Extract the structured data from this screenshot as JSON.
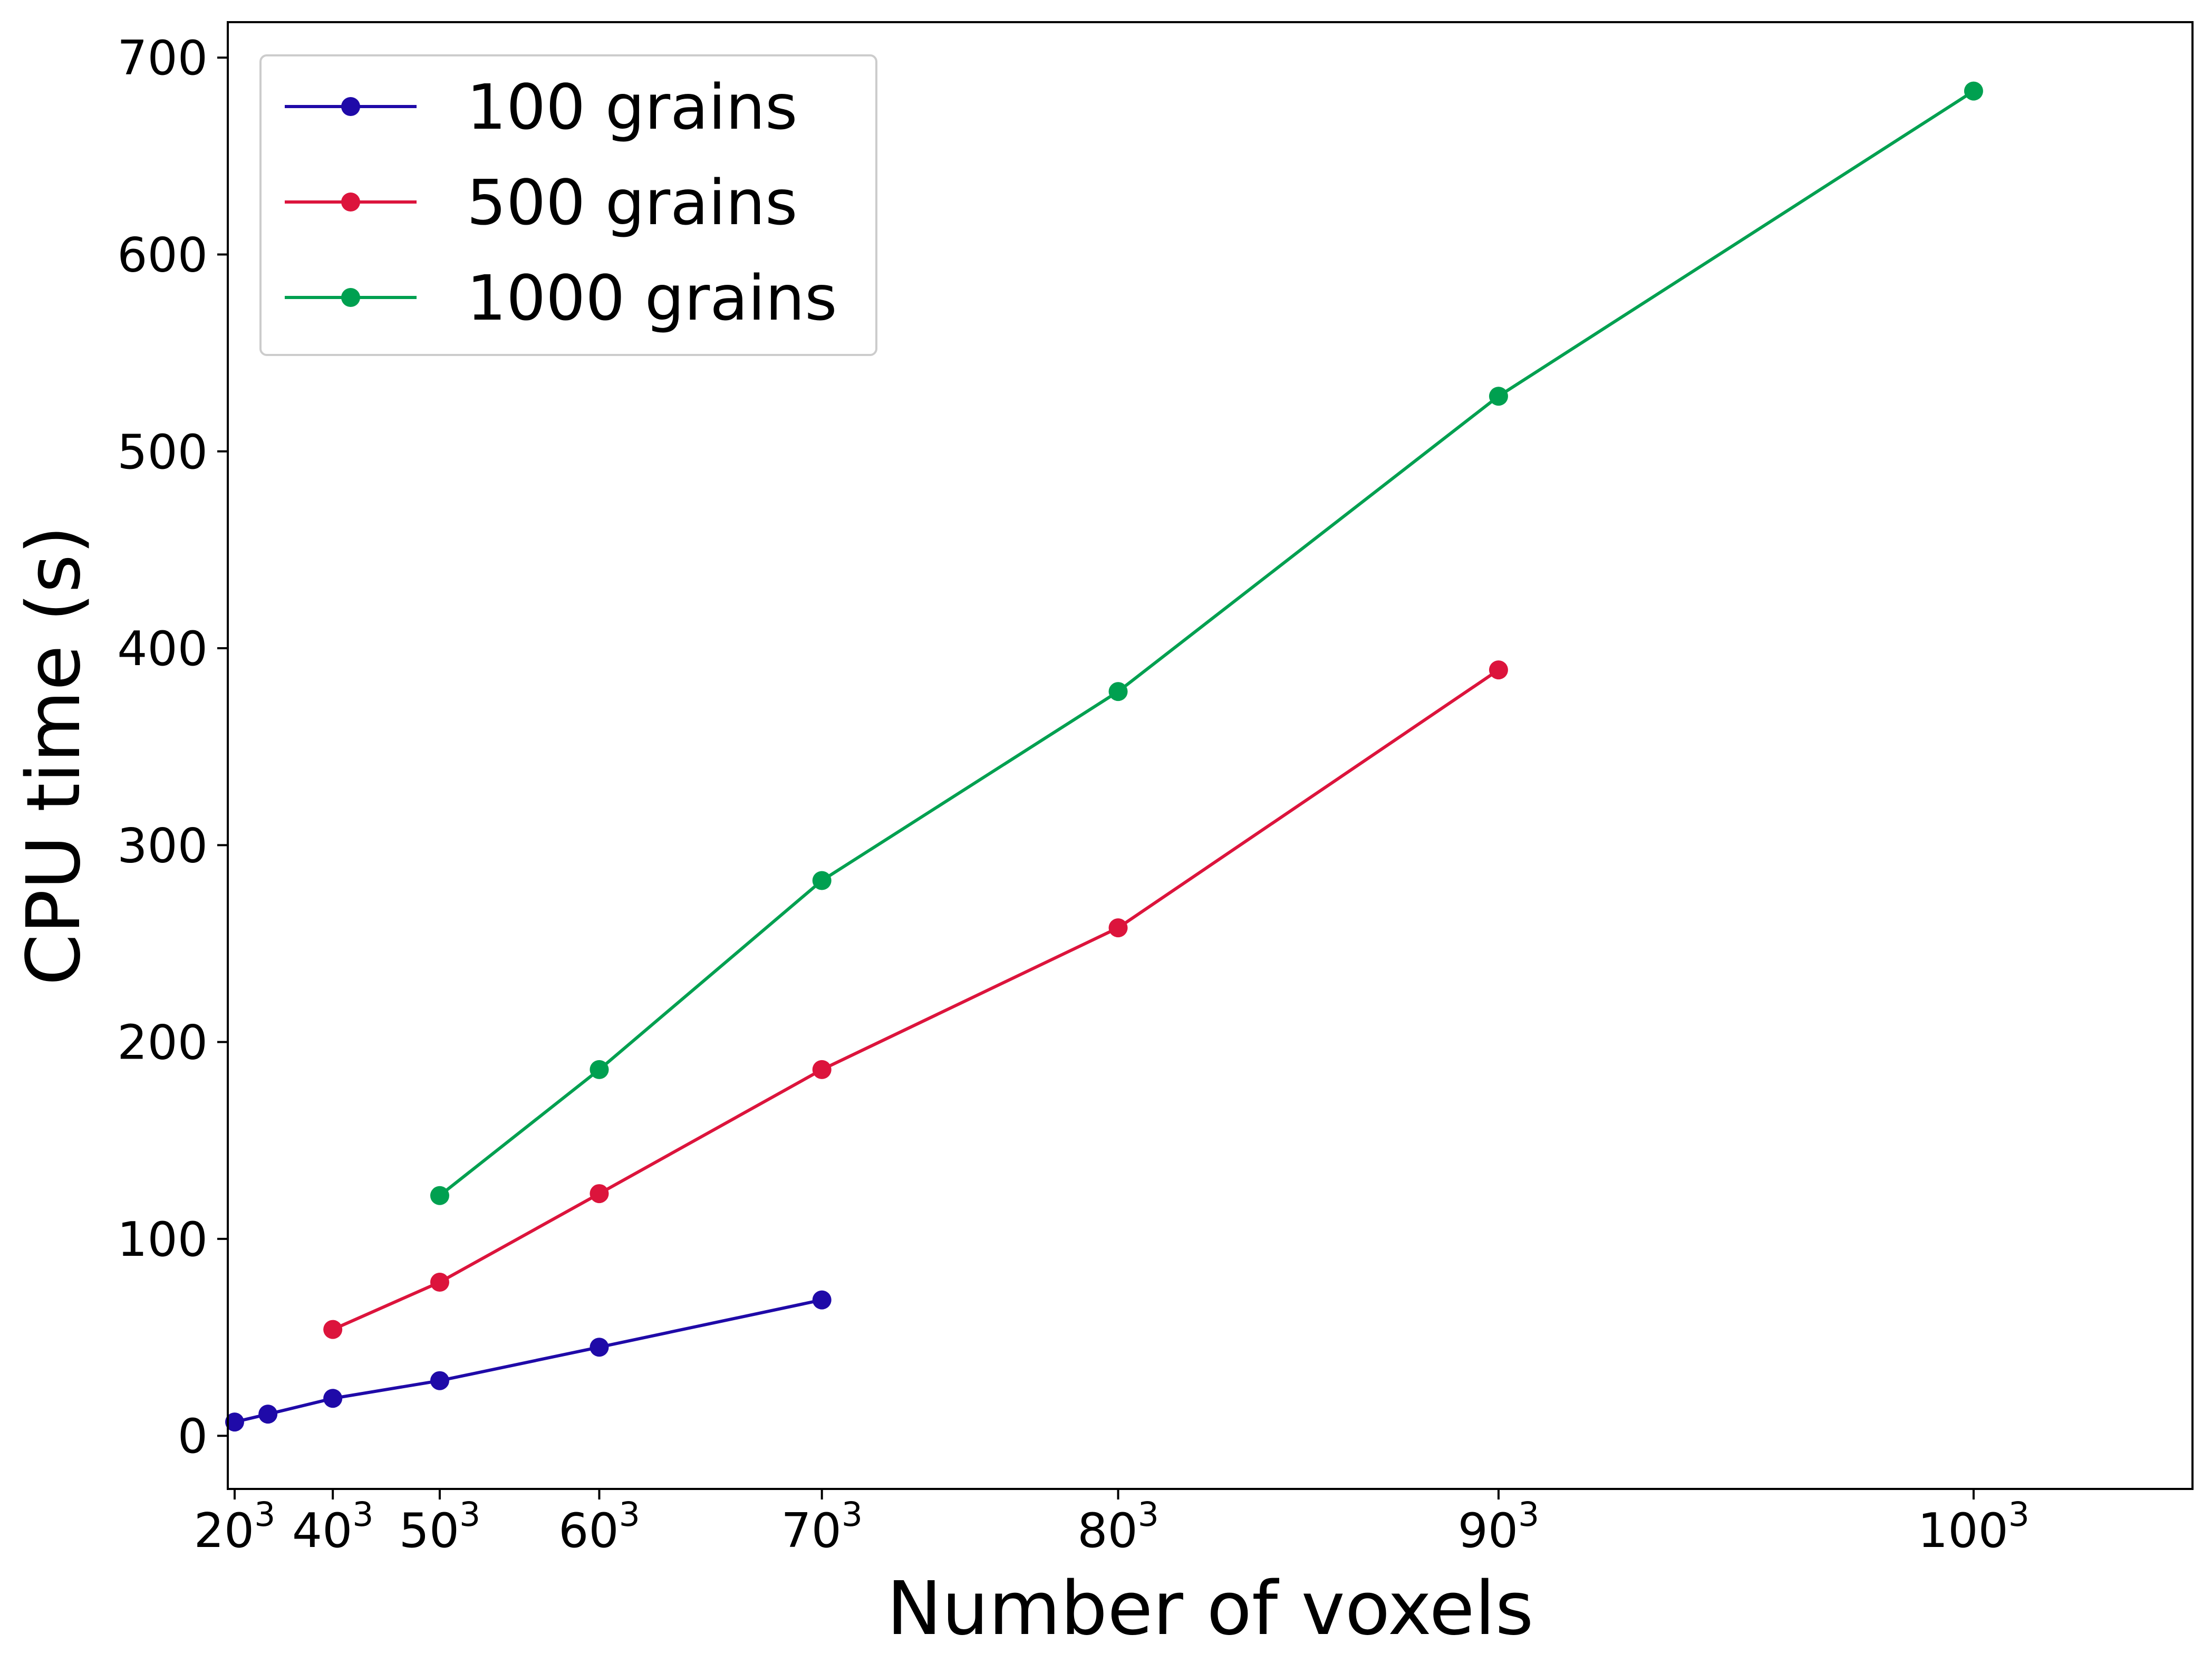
{
  "chart_data": {
    "type": "line",
    "xlabel": "Number of voxels",
    "ylabel": "CPU time (s)",
    "x_scale": "cubic",
    "xlim": [
      16,
      104
    ],
    "ylim": [
      -27,
      718
    ],
    "x_ticks": [
      {
        "base": "20",
        "exp": "3",
        "value": 20
      },
      {
        "base": "40",
        "exp": "3",
        "value": 40
      },
      {
        "base": "50",
        "exp": "3",
        "value": 50
      },
      {
        "base": "60",
        "exp": "3",
        "value": 60
      },
      {
        "base": "70",
        "exp": "3",
        "value": 70
      },
      {
        "base": "80",
        "exp": "3",
        "value": 80
      },
      {
        "base": "90",
        "exp": "3",
        "value": 90
      },
      {
        "base": "100",
        "exp": "3",
        "value": 100
      }
    ],
    "y_ticks": [
      0,
      100,
      200,
      300,
      400,
      500,
      600,
      700
    ],
    "grid": false,
    "legend_position": "top-left",
    "series": [
      {
        "name": "100 grains",
        "color": "#1f0aa8",
        "x": [
          20,
          30,
          40,
          50,
          60,
          70
        ],
        "y": [
          7,
          11,
          19,
          28,
          45,
          69
        ]
      },
      {
        "name": "500 grains",
        "color": "#dc143c",
        "x": [
          40,
          50,
          60,
          70,
          80,
          90
        ],
        "y": [
          54,
          78,
          123,
          186,
          258,
          389
        ]
      },
      {
        "name": "1000 grains",
        "color": "#00a050",
        "x": [
          50,
          60,
          70,
          80,
          90,
          100
        ],
        "y": [
          122,
          186,
          282,
          378,
          528,
          683
        ]
      }
    ]
  }
}
